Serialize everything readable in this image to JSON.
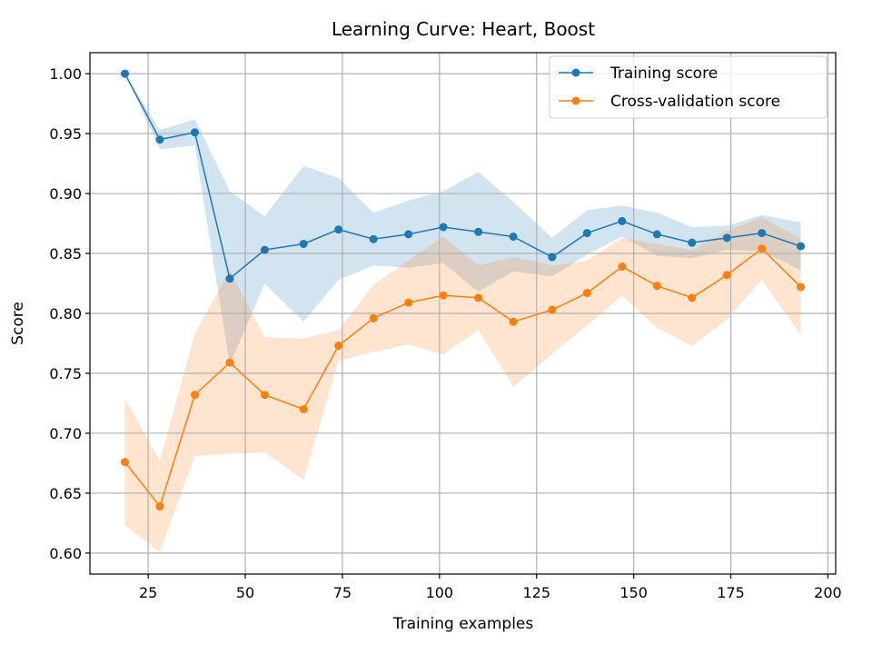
{
  "chart_data": {
    "type": "line",
    "title": "Learning Curve: Heart, Boost",
    "xlabel": "Training examples",
    "ylabel": "Score",
    "xlim": [
      10,
      202
    ],
    "ylim": [
      0.5825,
      1.0175
    ],
    "xticks": [
      25,
      50,
      75,
      100,
      125,
      150,
      175,
      200
    ],
    "xtick_labels": [
      "25",
      "50",
      "75",
      "100",
      "125",
      "150",
      "175",
      "200"
    ],
    "yticks": [
      0.6,
      0.65,
      0.7,
      0.75,
      0.8,
      0.85,
      0.9,
      0.95,
      1.0
    ],
    "ytick_labels": [
      "0.60",
      "0.65",
      "0.70",
      "0.75",
      "0.80",
      "0.85",
      "0.90",
      "0.95",
      "1.00"
    ],
    "grid": true,
    "legend": "top-right",
    "x": [
      19,
      28,
      37,
      46,
      55,
      65,
      74,
      83,
      92,
      101,
      110,
      119,
      129,
      138,
      147,
      156,
      165,
      174,
      183,
      193
    ],
    "series": [
      {
        "name": "Training score",
        "color": "#1f77b4",
        "band_color": "#1f77b4",
        "values": [
          1.0,
          0.945,
          0.951,
          0.829,
          0.853,
          0.858,
          0.87,
          0.862,
          0.866,
          0.872,
          0.868,
          0.864,
          0.847,
          0.867,
          0.877,
          0.866,
          0.859,
          0.863,
          0.867,
          0.856
        ],
        "lower": [
          1.0,
          0.937,
          0.94,
          0.757,
          0.825,
          0.793,
          0.828,
          0.84,
          0.838,
          0.842,
          0.818,
          0.835,
          0.831,
          0.849,
          0.864,
          0.848,
          0.846,
          0.853,
          0.852,
          0.836
        ],
        "upper": [
          1.0,
          0.953,
          0.962,
          0.902,
          0.881,
          0.923,
          0.913,
          0.884,
          0.894,
          0.902,
          0.918,
          0.893,
          0.863,
          0.886,
          0.89,
          0.884,
          0.872,
          0.873,
          0.882,
          0.876
        ]
      },
      {
        "name": "Cross-validation score",
        "color": "#ff7f0e",
        "band_color": "#ff7f0e",
        "values": [
          0.676,
          0.639,
          0.732,
          0.759,
          0.732,
          0.72,
          0.773,
          0.796,
          0.809,
          0.815,
          0.813,
          0.793,
          0.803,
          0.817,
          0.839,
          0.823,
          0.813,
          0.832,
          0.854,
          0.822
        ],
        "lower": [
          0.623,
          0.601,
          0.681,
          0.683,
          0.684,
          0.661,
          0.76,
          0.768,
          0.774,
          0.766,
          0.786,
          0.739,
          0.766,
          0.79,
          0.815,
          0.788,
          0.773,
          0.795,
          0.828,
          0.782
        ],
        "upper": [
          0.729,
          0.677,
          0.783,
          0.836,
          0.78,
          0.779,
          0.786,
          0.824,
          0.844,
          0.864,
          0.84,
          0.847,
          0.84,
          0.844,
          0.863,
          0.858,
          0.853,
          0.869,
          0.88,
          0.862
        ]
      }
    ]
  }
}
